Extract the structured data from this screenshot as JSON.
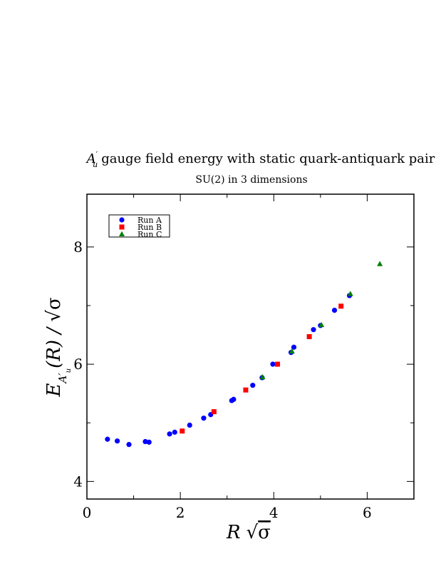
{
  "chart_data": {
    "type": "scatter",
    "title": "A′u gauge field energy with static quark-antiquark pair",
    "subtitle": "SU(2) in 3 dimensions",
    "xlabel": "R √σ",
    "ylabel": "E_A′u(R) / √σ",
    "xlim": [
      0,
      7
    ],
    "ylim": [
      3.7,
      8.9
    ],
    "x_ticks": [
      0,
      2,
      4,
      6
    ],
    "y_ticks": [
      4,
      6,
      8
    ],
    "grid": false,
    "legend_position": "top-left",
    "series": [
      {
        "name": "Run A",
        "marker": "circle",
        "color": "#0000ff",
        "points": [
          [
            0.44,
            4.72
          ],
          [
            0.65,
            4.69
          ],
          [
            0.9,
            4.63
          ],
          [
            1.25,
            4.68
          ],
          [
            1.33,
            4.67
          ],
          [
            1.77,
            4.81
          ],
          [
            1.88,
            4.84
          ],
          [
            2.2,
            4.96
          ],
          [
            2.5,
            5.08
          ],
          [
            2.65,
            5.14
          ],
          [
            3.1,
            5.38
          ],
          [
            3.14,
            5.4
          ],
          [
            3.55,
            5.64
          ],
          [
            3.75,
            5.77
          ],
          [
            3.98,
            6.0
          ],
          [
            4.37,
            6.2
          ],
          [
            4.43,
            6.29
          ],
          [
            4.85,
            6.59
          ],
          [
            5.0,
            6.66
          ],
          [
            5.3,
            6.92
          ],
          [
            5.62,
            7.17
          ]
        ]
      },
      {
        "name": "Run B",
        "marker": "square",
        "color": "#ff0000",
        "points": [
          [
            2.04,
            4.86
          ],
          [
            2.72,
            5.19
          ],
          [
            3.4,
            5.56
          ],
          [
            4.08,
            6.0
          ],
          [
            4.76,
            6.47
          ],
          [
            5.44,
            6.99
          ]
        ]
      },
      {
        "name": "Run C",
        "marker": "triangle",
        "color": "#008000",
        "points": [
          [
            3.76,
            5.78
          ],
          [
            4.39,
            6.22
          ],
          [
            5.02,
            6.67
          ],
          [
            5.64,
            7.2
          ],
          [
            6.27,
            7.71
          ]
        ]
      }
    ]
  }
}
